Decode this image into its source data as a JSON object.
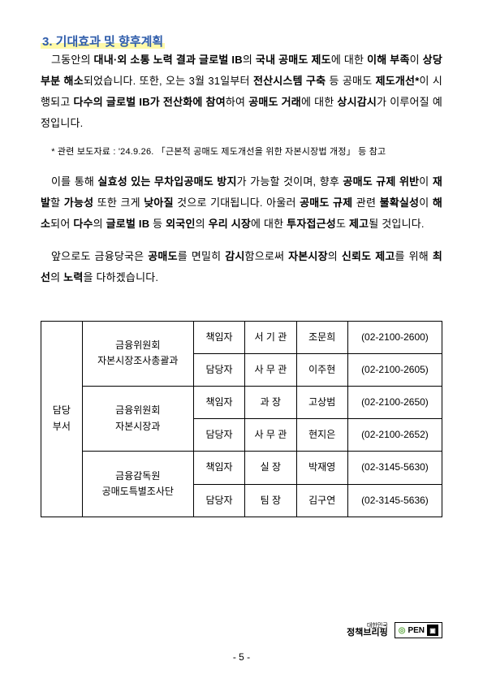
{
  "section_title": "3. 기대효과 및 향후계획",
  "para1_parts": [
    {
      "t": "그동안의 ",
      "b": false
    },
    {
      "t": "대내·외 소통 노력 결과 글로벌 IB",
      "b": true
    },
    {
      "t": "의 ",
      "b": false
    },
    {
      "t": "국내 공매도 제도",
      "b": true
    },
    {
      "t": "에 대한 ",
      "b": false
    },
    {
      "t": "이해 부족",
      "b": true
    },
    {
      "t": "이 ",
      "b": false
    },
    {
      "t": "상당 부분 해소",
      "b": true
    },
    {
      "t": "되었습니다. 또한, 오는 3월 31일부터 ",
      "b": false
    },
    {
      "t": "전산시스템 구축",
      "b": true
    },
    {
      "t": " 등 공매도 ",
      "b": false
    },
    {
      "t": "제도개선*",
      "b": true
    },
    {
      "t": "이 시행되고 ",
      "b": false
    },
    {
      "t": "다수의 글로벌 IB가 전산화에 참여",
      "b": true
    },
    {
      "t": "하여 ",
      "b": false
    },
    {
      "t": "공매도 거래",
      "b": true
    },
    {
      "t": "에 대한 ",
      "b": false
    },
    {
      "t": "상시감시",
      "b": true
    },
    {
      "t": "가 이루어질 예정입니다.",
      "b": false
    }
  ],
  "footnote": "* 관련 보도자료 : '24.9.26. 「근본적 공매도 제도개선을 위한 자본시장법 개정」 등 참고",
  "para2_parts": [
    {
      "t": "이를 통해 ",
      "b": false
    },
    {
      "t": "실효성 있는 무차입공매도 방지",
      "b": true
    },
    {
      "t": "가 가능할 것이며, 향후 ",
      "b": false
    },
    {
      "t": "공매도 규제 위반",
      "b": true
    },
    {
      "t": "이 ",
      "b": false
    },
    {
      "t": "재발",
      "b": true
    },
    {
      "t": "할 ",
      "b": false
    },
    {
      "t": "가능성",
      "b": true
    },
    {
      "t": " 또한 크게 ",
      "b": false
    },
    {
      "t": "낮아질",
      "b": true
    },
    {
      "t": " 것으로 기대됩니다. 아울러 ",
      "b": false
    },
    {
      "t": "공매도 규제",
      "b": true
    },
    {
      "t": " 관련 ",
      "b": false
    },
    {
      "t": "불확실성",
      "b": true
    },
    {
      "t": "이 ",
      "b": false
    },
    {
      "t": "해소",
      "b": true
    },
    {
      "t": "되어 ",
      "b": false
    },
    {
      "t": "다수",
      "b": true
    },
    {
      "t": "의 ",
      "b": false
    },
    {
      "t": "글로벌 IB",
      "b": true
    },
    {
      "t": " 등 ",
      "b": false
    },
    {
      "t": "외국인",
      "b": true
    },
    {
      "t": "의 ",
      "b": false
    },
    {
      "t": "우리 시장",
      "b": true
    },
    {
      "t": "에 대한 ",
      "b": false
    },
    {
      "t": "투자접근성",
      "b": true
    },
    {
      "t": "도 ",
      "b": false
    },
    {
      "t": "제고",
      "b": true
    },
    {
      "t": "될 것입니다.",
      "b": false
    }
  ],
  "para3_parts": [
    {
      "t": "앞으로도 금융당국은 ",
      "b": false
    },
    {
      "t": "공매도",
      "b": true
    },
    {
      "t": "를 면밀히 ",
      "b": false
    },
    {
      "t": "감시",
      "b": true
    },
    {
      "t": "함으로써 ",
      "b": false
    },
    {
      "t": "자본시장",
      "b": true
    },
    {
      "t": "의 ",
      "b": false
    },
    {
      "t": "신뢰도 제고",
      "b": true
    },
    {
      "t": "를 위해 ",
      "b": false
    },
    {
      "t": "최선",
      "b": true
    },
    {
      "t": "의 ",
      "b": false
    },
    {
      "t": "노력",
      "b": true
    },
    {
      "t": "을 다하겠습니다.",
      "b": false
    }
  ],
  "table": {
    "dept_label": "담당\n부서",
    "rows": [
      {
        "org": "금융위원회\n자본시장조사총괄과",
        "role": "책임자",
        "pos": "서 기 관",
        "name": "조문희",
        "phone": "(02-2100-2600)"
      },
      {
        "org": "",
        "role": "담당자",
        "pos": "사 무 관",
        "name": "이주현",
        "phone": "(02-2100-2605)"
      },
      {
        "org": "금융위원회\n자본시장과",
        "role": "책임자",
        "pos": "과   장",
        "name": "고상범",
        "phone": "(02-2100-2650)"
      },
      {
        "org": "",
        "role": "담당자",
        "pos": "사 무 관",
        "name": "현지은",
        "phone": "(02-2100-2652)"
      },
      {
        "org": "금융감독원\n공매도특별조사단",
        "role": "책임자",
        "pos": "실   장",
        "name": "박재영",
        "phone": "(02-3145-5630)"
      },
      {
        "org": "",
        "role": "담당자",
        "pos": "팀   장",
        "name": "김구연",
        "phone": "(02-3145-5636)"
      }
    ]
  },
  "logo_small": "대한민국",
  "logo_big": "정책브리핑",
  "logo_open": "PEN",
  "page_num": "- 5 -"
}
